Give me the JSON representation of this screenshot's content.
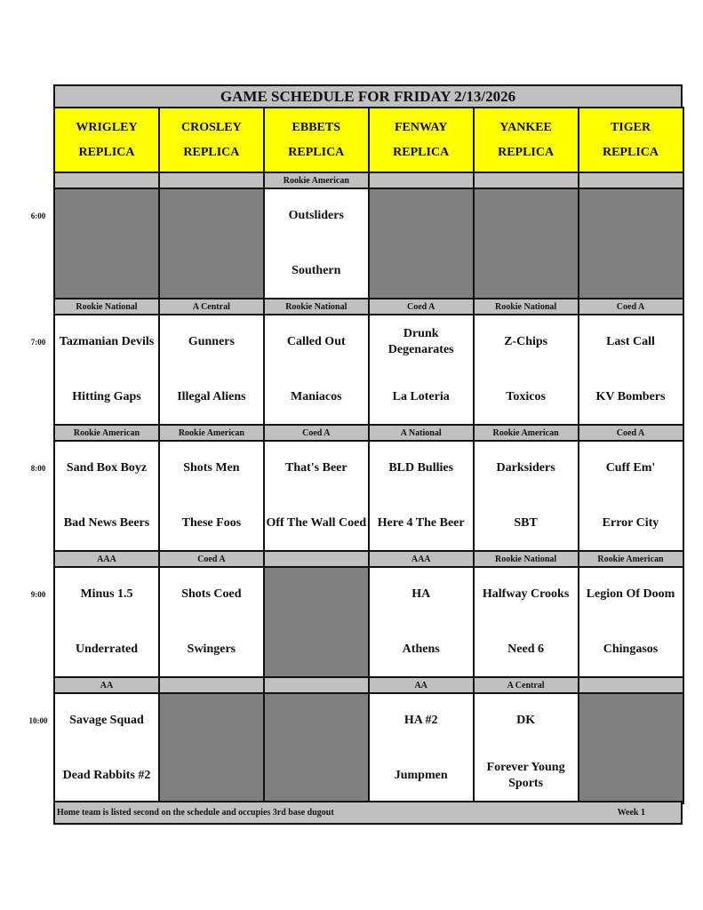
{
  "title": "GAME SCHEDULE FOR FRIDAY 2/13/2026",
  "fields": [
    {
      "name": "WRIGLEY",
      "sub": "REPLICA"
    },
    {
      "name": "CROSLEY",
      "sub": "REPLICA"
    },
    {
      "name": "EBBETS",
      "sub": "REPLICA"
    },
    {
      "name": "FENWAY",
      "sub": "REPLICA"
    },
    {
      "name": "YANKEE",
      "sub": "REPLICA"
    },
    {
      "name": "TIGER",
      "sub": "REPLICA"
    }
  ],
  "slots": [
    {
      "time": "6:00",
      "games": [
        null,
        null,
        {
          "division": "Rookie American",
          "away": "Outsliders",
          "home": "Southern"
        },
        null,
        null,
        null
      ]
    },
    {
      "time": "7:00",
      "games": [
        {
          "division": "Rookie National",
          "away": "Tazmanian Devils",
          "home": "Hitting Gaps"
        },
        {
          "division": "A Central",
          "away": "Gunners",
          "home": "Illegal Aliens"
        },
        {
          "division": "Rookie National",
          "away": "Called Out",
          "home": "Maniacos"
        },
        {
          "division": "Coed A",
          "away": "Drunk Degenarates",
          "home": "La Loteria"
        },
        {
          "division": "Rookie National",
          "away": "Z-Chips",
          "home": "Toxicos"
        },
        {
          "division": "Coed A",
          "away": "Last Call",
          "home": "KV Bombers"
        }
      ]
    },
    {
      "time": "8:00",
      "games": [
        {
          "division": "Rookie American",
          "away": "Sand Box Boyz",
          "home": "Bad News Beers"
        },
        {
          "division": "Rookie American",
          "away": "Shots Men",
          "home": "These Foos"
        },
        {
          "division": "Coed A",
          "away": "That's Beer",
          "home": "Off The Wall Coed"
        },
        {
          "division": "A National",
          "away": "BLD Bullies",
          "home": "Here 4 The Beer"
        },
        {
          "division": "Rookie American",
          "away": "Darksiders",
          "home": "SBT"
        },
        {
          "division": "Coed A",
          "away": "Cuff Em'",
          "home": "Error City"
        }
      ]
    },
    {
      "time": "9:00",
      "games": [
        {
          "division": "AAA",
          "away": "Minus 1.5",
          "home": "Underrated"
        },
        {
          "division": "Coed A",
          "away": "Shots Coed",
          "home": "Swingers"
        },
        null,
        {
          "division": "AAA",
          "away": "HA",
          "home": "Athens"
        },
        {
          "division": "Rookie National",
          "away": "Halfway Crooks",
          "home": "Need 6"
        },
        {
          "division": "Rookie American",
          "away": "Legion Of Doom",
          "home": "Chingasos"
        }
      ]
    },
    {
      "time": "10:00",
      "games": [
        {
          "division": "AA",
          "away": "Savage Squad",
          "home": "Dead Rabbits #2"
        },
        null,
        null,
        {
          "division": "AA",
          "away": "HA #2",
          "home": "Jumpmen"
        },
        {
          "division": "A Central",
          "away": "DK",
          "home": "Forever Young Sports"
        },
        null
      ]
    }
  ],
  "footer": {
    "note": "Home team is listed second on the schedule and occupies 3rd base dugout",
    "week": "Week 1"
  },
  "colors": {
    "header": "#ffff00",
    "label_bar": "#c0c0c0",
    "empty_slot": "#808080"
  }
}
